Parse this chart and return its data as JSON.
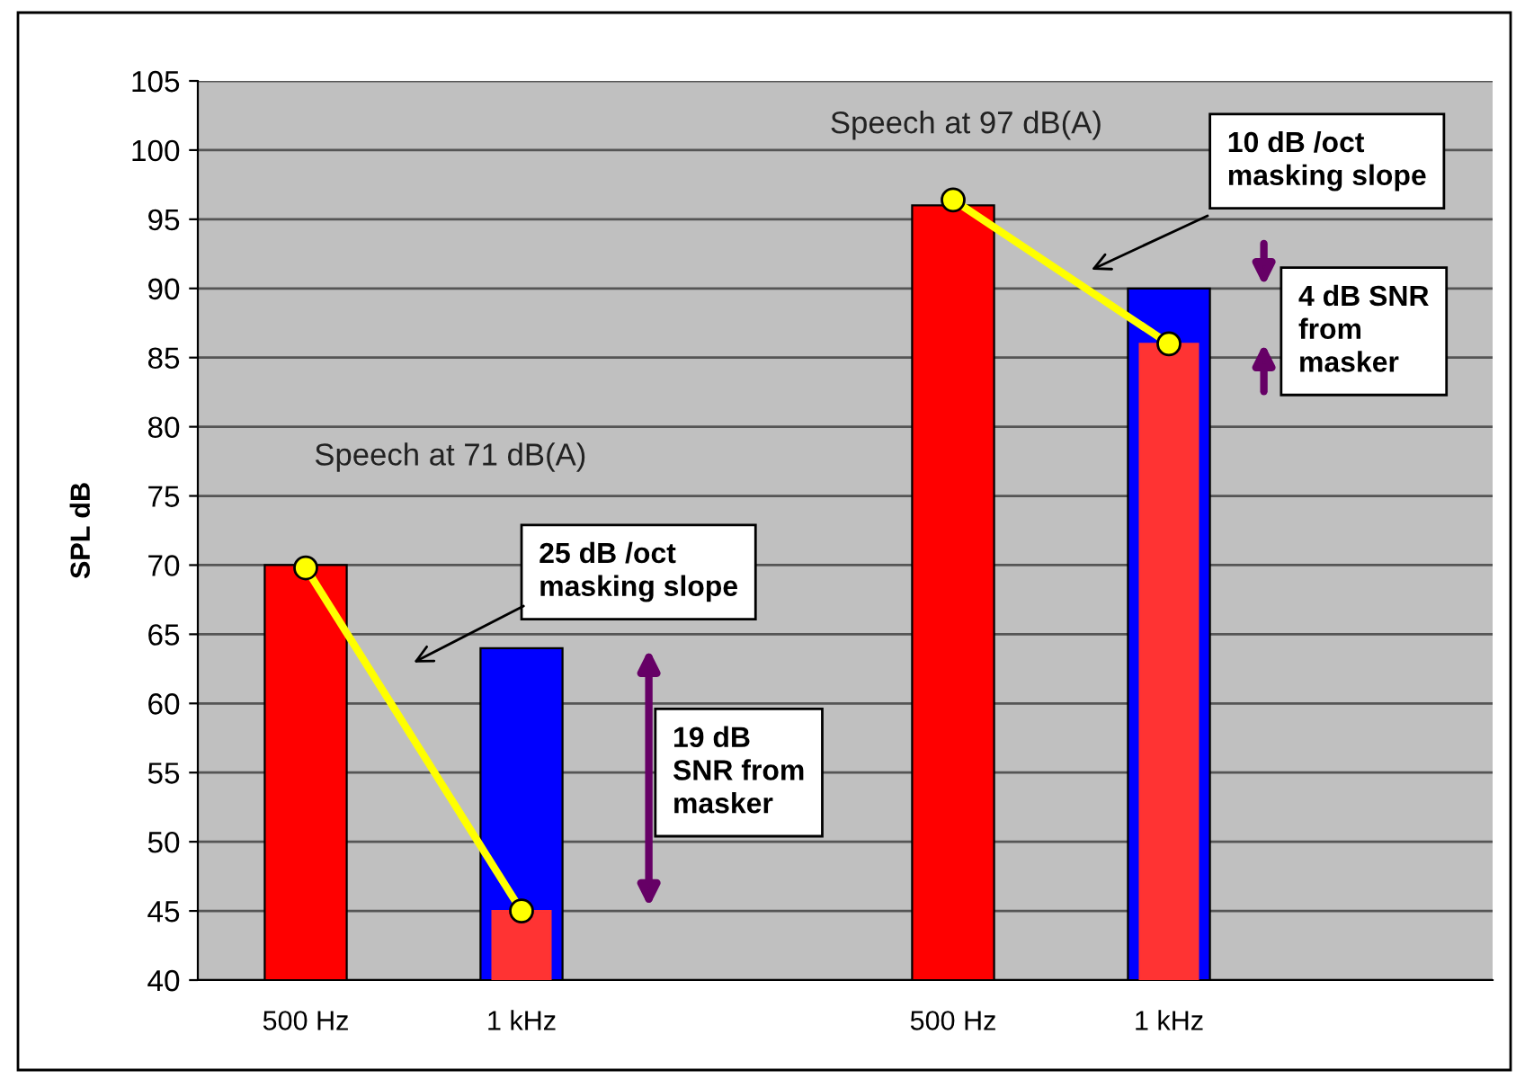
{
  "chart_data": {
    "type": "bar",
    "ylabel": "SPL dB",
    "categories": [
      "500 Hz",
      "1 kHz",
      null,
      "500 Hz",
      "1 kHz",
      null
    ],
    "series": [
      {
        "color": "#ff0000",
        "values": [
          70,
          null,
          null,
          96,
          null,
          null
        ]
      },
      {
        "color": "#0000ff",
        "values": [
          null,
          64,
          null,
          null,
          90,
          null
        ]
      },
      {
        "color": "#ff3333",
        "values": [
          null,
          45,
          null,
          null,
          86,
          null
        ]
      },
      {
        "type": "line",
        "color": "#ffff00",
        "marker": "circle",
        "values": [
          69.8,
          45,
          null,
          null,
          null,
          null
        ]
      },
      {
        "type": "line",
        "color": "#ffff00",
        "marker": "circle",
        "values": [
          null,
          null,
          null,
          96.4,
          86,
          null
        ]
      }
    ],
    "ylim": [
      40,
      105
    ],
    "yticks": [
      40,
      45,
      50,
      55,
      60,
      65,
      70,
      75,
      80,
      85,
      90,
      95,
      100,
      105
    ],
    "grid": "y",
    "annotations": [
      "Speech at 71 dB(A)",
      "25 dB /oct\nmasking slope",
      "19 dB\nSNR from\nmasker",
      "Speech at 97 dB(A)",
      "10 dB /oct\nmasking slope",
      "4 dB SNR\nfrom\nmasker"
    ]
  }
}
